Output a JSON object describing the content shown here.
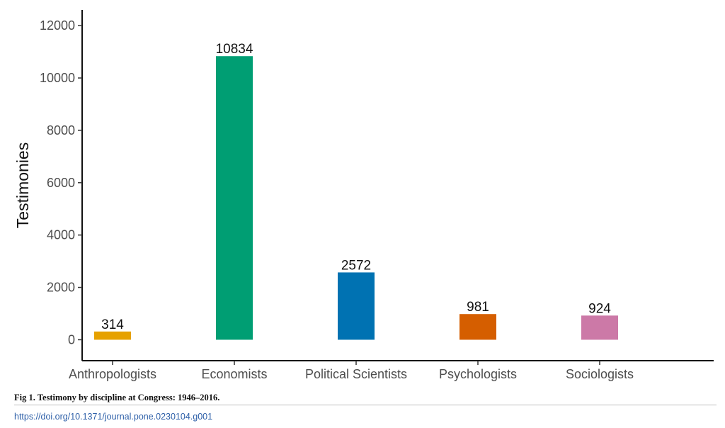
{
  "chart_data": {
    "type": "bar",
    "title": "",
    "xlabel": "",
    "ylabel": "Testimonies",
    "ylim": [
      -800,
      12600
    ],
    "yticks": [
      0,
      2000,
      4000,
      6000,
      8000,
      10000,
      12000
    ],
    "categories": [
      "Anthropologists",
      "Economists",
      "Political Scientists",
      "Psychologists",
      "Sociologists"
    ],
    "values": [
      314,
      10834,
      2572,
      981,
      924
    ],
    "colors": [
      "#E6A100",
      "#009E73",
      "#0072B2",
      "#D55E00",
      "#CC79A7"
    ],
    "data_labels": [
      "314",
      "10834",
      "2572",
      "981",
      "924"
    ],
    "grid": false,
    "legend": "none"
  },
  "caption": {
    "text": "Fig 1.  Testimony by discipline at Congress: 1946–2016.",
    "doi": "https://doi.org/10.1371/journal.pone.0230104.g001"
  }
}
